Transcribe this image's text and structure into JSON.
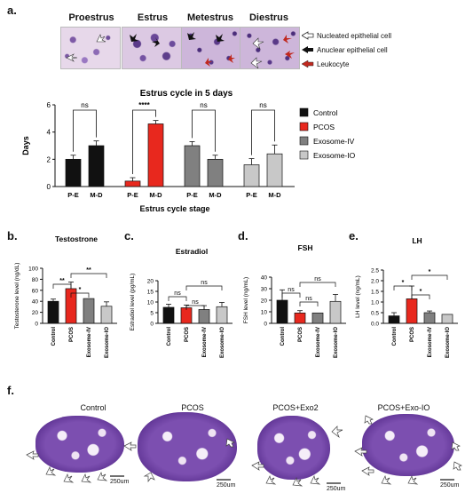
{
  "panels": {
    "a": {
      "letter": "a.",
      "stages": [
        "Proestrus",
        "Estrus",
        "Metestrus",
        "Diestrus"
      ],
      "legend": [
        {
          "label": "Nucleated epithelial cell",
          "arrow": "white-arrow"
        },
        {
          "label": "Anuclear epithelial cell",
          "arrow": "black-arrow"
        },
        {
          "label": "Leukocyte",
          "arrow": "red-arrow"
        }
      ],
      "chart_title": "Estrus cycle in 5 days"
    },
    "b": {
      "letter": "b."
    },
    "c": {
      "letter": "c."
    },
    "d": {
      "letter": "d."
    },
    "e": {
      "letter": "e."
    },
    "f": {
      "letter": "f.",
      "labels": [
        "Control",
        "PCOS",
        "PCOS+Exo2",
        "PCOS+Exo-IO"
      ],
      "scale_bar": "250um"
    }
  },
  "colors": {
    "Control": "#111111",
    "PCOS": "#e8281e",
    "Exosome-IV": "#808080",
    "Exosome-IO": "#c8c8c8"
  },
  "chart_data": [
    {
      "type": "bar",
      "title": "Estrus cycle in 5 days",
      "xlabel": "Estrus cycle stage",
      "ylabel": "Days",
      "ylim": [
        0,
        6
      ],
      "yticks": [
        0,
        2,
        4,
        6
      ],
      "legend_position": "right",
      "groups": [
        "Control",
        "PCOS",
        "Exosome-IV",
        "Exosome-IO"
      ],
      "categories": [
        "P-E",
        "M-D"
      ],
      "series": [
        {
          "name": "Control",
          "values": [
            2.0,
            3.0
          ],
          "err": [
            0.3,
            0.35
          ]
        },
        {
          "name": "PCOS",
          "values": [
            0.4,
            4.6
          ],
          "err": [
            0.25,
            0.25
          ]
        },
        {
          "name": "Exosome-IV",
          "values": [
            3.0,
            2.0
          ],
          "err": [
            0.3,
            0.3
          ]
        },
        {
          "name": "Exosome-IO",
          "values": [
            1.6,
            2.4
          ],
          "err": [
            0.45,
            0.65
          ]
        }
      ],
      "significance": [
        "ns",
        "****",
        "ns",
        "ns"
      ]
    },
    {
      "type": "bar",
      "title": "Testostrone",
      "ylabel": "Testosterone level (ng/dL)",
      "ylim": [
        0,
        100
      ],
      "yticks": [
        0,
        20,
        40,
        60,
        80,
        100
      ],
      "categories": [
        "Control",
        "PCOS",
        "Exosome-IV",
        "Exosome-IO"
      ],
      "values": [
        40,
        63,
        45,
        31
      ],
      "err": [
        4,
        12,
        0,
        8
      ],
      "brackets": [
        {
          "from": 0,
          "to": 1,
          "label": "**"
        },
        {
          "from": 1,
          "to": 2,
          "label": "*"
        },
        {
          "from": 1,
          "to": 3,
          "label": "**"
        }
      ]
    },
    {
      "type": "bar",
      "title": "Estradiol",
      "ylabel": "Estradiol level (pg/mL)",
      "ylim": [
        0,
        20
      ],
      "yticks": [
        0,
        5,
        10,
        15,
        20
      ],
      "categories": [
        "Control",
        "PCOS",
        "Exosome-IV",
        "Exosome-IO"
      ],
      "values": [
        7.5,
        7.3,
        6.5,
        7.8
      ],
      "err": [
        1.5,
        1.3,
        1.8,
        2.0
      ],
      "brackets": [
        {
          "from": 0,
          "to": 1,
          "label": "ns"
        },
        {
          "from": 1,
          "to": 2,
          "label": "ns"
        },
        {
          "from": 1,
          "to": 3,
          "label": "ns"
        }
      ]
    },
    {
      "type": "bar",
      "title": "FSH",
      "ylabel": "FSH level (ng/mL)",
      "ylim": [
        0,
        40
      ],
      "yticks": [
        0,
        10,
        20,
        30,
        40
      ],
      "categories": [
        "Control",
        "PCOS",
        "Exosome-IV",
        "Exosome-IO"
      ],
      "values": [
        20,
        9,
        9,
        19
      ],
      "err": [
        9,
        2,
        0,
        6
      ],
      "brackets": [
        {
          "from": 0,
          "to": 1,
          "label": "ns"
        },
        {
          "from": 1,
          "to": 2,
          "label": "ns"
        },
        {
          "from": 1,
          "to": 3,
          "label": "ns"
        }
      ]
    },
    {
      "type": "bar",
      "title": "LH",
      "ylabel": "LH level (ng/mL)",
      "ylim": [
        0,
        2.5
      ],
      "yticks": [
        0.0,
        0.5,
        1.0,
        1.5,
        2.0,
        2.5
      ],
      "categories": [
        "Control",
        "PCOS",
        "Exosome-IV",
        "Exosome-IO"
      ],
      "values": [
        0.35,
        1.15,
        0.5,
        0.42
      ],
      "err": [
        0.15,
        0.6,
        0.08,
        0.0
      ],
      "brackets": [
        {
          "from": 0,
          "to": 1,
          "label": "*"
        },
        {
          "from": 1,
          "to": 2,
          "label": "*"
        },
        {
          "from": 1,
          "to": 3,
          "label": "*"
        }
      ]
    }
  ]
}
